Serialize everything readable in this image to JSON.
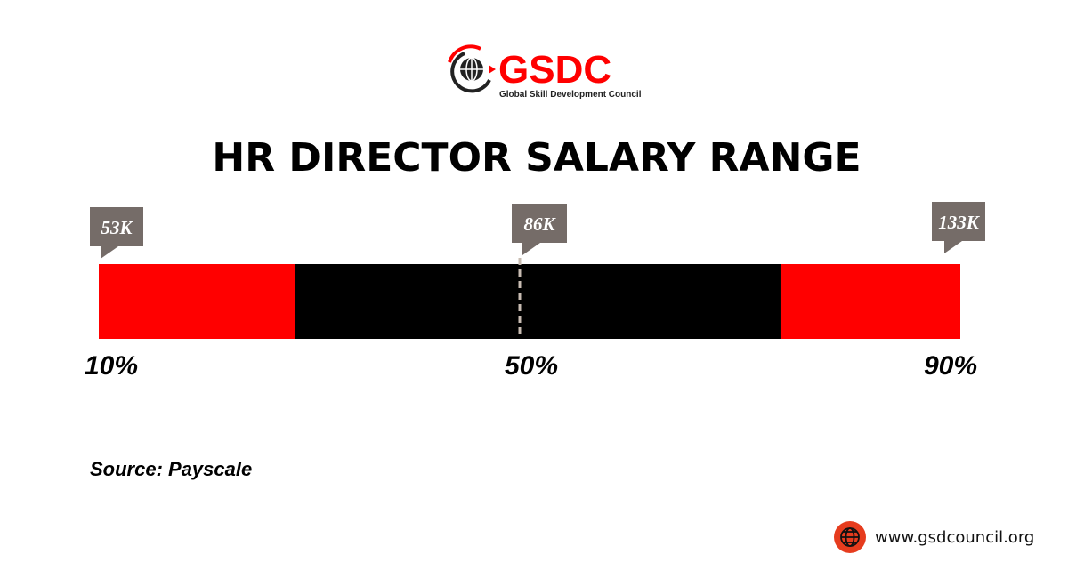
{
  "logo": {
    "wordmark": "GSDC",
    "tagline": "Global Skill Development Council"
  },
  "colors": {
    "accent": "#ff0000",
    "bar_middle": "#000000",
    "callout": "#756c68",
    "median_line": "#c8bcb2",
    "globe_badge": "#e63c1e"
  },
  "chart_data": {
    "type": "bar",
    "title": "HR DIRECTOR SALARY RANGE",
    "orientation": "horizontal",
    "segments": [
      {
        "from": 0,
        "to": 0.2273,
        "color": "#ff0000"
      },
      {
        "from": 0.2273,
        "to": 0.7913,
        "color": "#000000"
      },
      {
        "from": 0.7913,
        "to": 1,
        "color": "#ff0000"
      }
    ],
    "markers": [
      {
        "percentile": "10%",
        "value": "53K",
        "position": 0.0
      },
      {
        "percentile": "50%",
        "value": "86K",
        "position": 0.5,
        "median_line": true
      },
      {
        "percentile": "90%",
        "value": "133K",
        "position": 1.0
      }
    ],
    "source": "Source: Payscale"
  },
  "footer": {
    "website": "www.gsdcouncil.org",
    "icon": "globe-icon"
  }
}
